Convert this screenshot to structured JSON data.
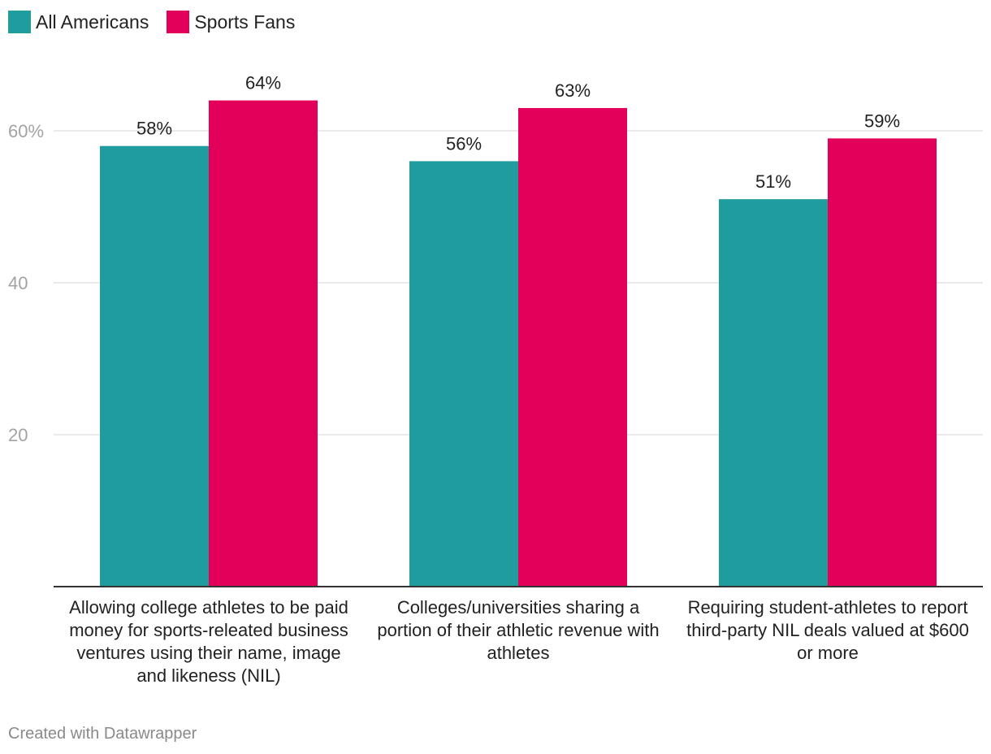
{
  "chart_data": {
    "type": "bar",
    "title": "",
    "xlabel": "",
    "ylabel": "",
    "ylim": [
      0,
      70
    ],
    "yticks": [
      {
        "value": 20,
        "label": "20"
      },
      {
        "value": 40,
        "label": "40"
      },
      {
        "value": 60,
        "label": "60%"
      }
    ],
    "grid": true,
    "legend_position": "top-left",
    "categories": [
      "Allowing college athletes to be paid money for sports-releated business ventures using their name, image and likeness (NIL)",
      "Colleges/universities sharing a portion of their athletic revenue with athletes",
      "Requiring student-athletes to report third-party NIL deals valued at $600 or more"
    ],
    "series": [
      {
        "name": "All Americans",
        "color": "#1f9c9e",
        "values": [
          58,
          56,
          51
        ],
        "labels": [
          "58%",
          "56%",
          "51%"
        ]
      },
      {
        "name": "Sports Fans",
        "color": "#e3005b",
        "values": [
          64,
          63,
          59
        ],
        "labels": [
          "64%",
          "63%",
          "59%"
        ]
      }
    ]
  },
  "legend": {
    "items": [
      {
        "label": "All Americans",
        "color": "#1f9c9e"
      },
      {
        "label": "Sports Fans",
        "color": "#e3005b"
      }
    ]
  },
  "footer": {
    "text": "Created with Datawrapper"
  }
}
